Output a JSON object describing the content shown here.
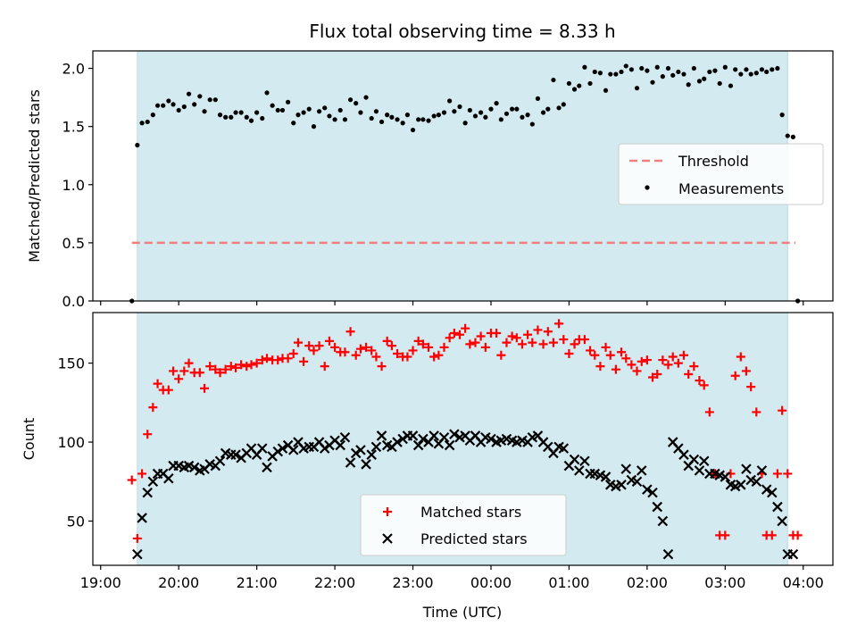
{
  "chart_data": {
    "type": "scatter",
    "title": "Flux total observing time = 8.33 h",
    "xlabel": "Time (UTC)",
    "x_ticks": [
      "19:00",
      "20:00",
      "21:00",
      "22:00",
      "23:00",
      "00:00",
      "01:00",
      "02:00",
      "03:00",
      "04:00"
    ],
    "observing_window": {
      "start_hours_after_19": 0.47,
      "end_hours_after_19": 8.8
    },
    "shade_color": "#d3eaf0",
    "panels": [
      {
        "name": "ratio",
        "ylabel": "Matched/Predicted stars",
        "ylim": [
          0,
          2.15
        ],
        "y_ticks": [
          "0.0",
          "0.5",
          "1.0",
          "1.5",
          "2.0"
        ],
        "y_tick_values": [
          0,
          0.5,
          1.0,
          1.5,
          2.0
        ],
        "legend": {
          "location": "center-right",
          "entries": [
            "Threshold",
            "Measurements"
          ]
        },
        "threshold": {
          "name": "Threshold",
          "value": 0.5,
          "x_range": [
            0.4,
            8.9
          ],
          "color": "#f08080"
        },
        "series": [
          {
            "name": "Measurements",
            "color": "#000000",
            "marker": "dot",
            "x": [
              0.4,
              0.47,
              0.53,
              0.6,
              0.67,
              0.73,
              0.8,
              0.87,
              0.93,
              1.0,
              1.07,
              1.13,
              1.2,
              1.27,
              1.33,
              1.4,
              1.47,
              1.53,
              1.6,
              1.67,
              1.73,
              1.8,
              1.87,
              1.93,
              2.0,
              2.07,
              2.13,
              2.2,
              2.27,
              2.33,
              2.4,
              2.47,
              2.53,
              2.6,
              2.67,
              2.73,
              2.8,
              2.87,
              2.93,
              3.0,
              3.07,
              3.13,
              3.2,
              3.27,
              3.33,
              3.4,
              3.47,
              3.53,
              3.6,
              3.67,
              3.73,
              3.8,
              3.87,
              3.93,
              4.0,
              4.07,
              4.13,
              4.2,
              4.27,
              4.33,
              4.4,
              4.47,
              4.53,
              4.6,
              4.67,
              4.73,
              4.8,
              4.87,
              4.93,
              5.0,
              5.07,
              5.13,
              5.2,
              5.27,
              5.33,
              5.4,
              5.47,
              5.53,
              5.6,
              5.67,
              5.73,
              5.8,
              5.87,
              5.93,
              6.0,
              6.07,
              6.13,
              6.2,
              6.27,
              6.33,
              6.4,
              6.47,
              6.53,
              6.6,
              6.67,
              6.73,
              6.8,
              6.87,
              6.93,
              7.0,
              7.07,
              7.13,
              7.2,
              7.27,
              7.33,
              7.4,
              7.47,
              7.53,
              7.6,
              7.67,
              7.73,
              7.8,
              7.87,
              7.93,
              8.0,
              8.07,
              8.13,
              8.2,
              8.27,
              8.33,
              8.4,
              8.47,
              8.53,
              8.6,
              8.67,
              8.73,
              8.8,
              8.87,
              8.93
            ],
            "y": [
              0.0,
              1.34,
              1.53,
              1.54,
              1.6,
              1.68,
              1.68,
              1.72,
              1.69,
              1.64,
              1.67,
              1.78,
              1.69,
              1.76,
              1.63,
              1.73,
              1.73,
              1.6,
              1.58,
              1.58,
              1.62,
              1.62,
              1.58,
              1.55,
              1.62,
              1.57,
              1.79,
              1.68,
              1.64,
              1.64,
              1.71,
              1.53,
              1.6,
              1.62,
              1.65,
              1.5,
              1.63,
              1.66,
              1.59,
              1.56,
              1.64,
              1.56,
              1.73,
              1.7,
              1.62,
              1.75,
              1.57,
              1.63,
              1.54,
              1.6,
              1.58,
              1.56,
              1.53,
              1.6,
              1.47,
              1.56,
              1.56,
              1.55,
              1.59,
              1.6,
              1.62,
              1.72,
              1.63,
              1.67,
              1.53,
              1.64,
              1.59,
              1.62,
              1.58,
              1.65,
              1.7,
              1.56,
              1.61,
              1.65,
              1.65,
              1.58,
              1.6,
              1.52,
              1.74,
              1.62,
              1.65,
              1.9,
              1.66,
              1.69,
              1.87,
              1.82,
              1.85,
              2.01,
              1.87,
              1.97,
              1.96,
              1.81,
              1.95,
              1.95,
              1.97,
              2.02,
              1.99,
              1.83,
              2.0,
              1.98,
              1.88,
              2.01,
              1.93,
              2.0,
              1.94,
              1.97,
              1.95,
              1.86,
              2.0,
              1.89,
              1.91,
              1.97,
              1.98,
              1.87,
              2.01,
              1.85,
              1.99,
              1.95,
              1.99,
              1.95,
              1.96,
              1.99,
              1.97,
              1.99,
              2.0,
              1.6,
              1.42,
              1.41,
              0.0
            ],
            "y_note": "Measured ratio values read from chart"
          }
        ]
      },
      {
        "name": "counts",
        "ylabel": "Count",
        "ylim": [
          22,
          182
        ],
        "y_ticks": [
          "50",
          "100",
          "150"
        ],
        "y_tick_values": [
          50,
          100,
          150
        ],
        "legend": {
          "location": "bottom-center",
          "entries": [
            "Matched stars",
            "Predicted stars"
          ]
        },
        "series": [
          {
            "name": "Matched stars",
            "color": "#ff0000",
            "marker": "plus",
            "x": [
              0.4,
              0.47,
              0.53,
              0.6,
              0.67,
              0.73,
              0.8,
              0.87,
              0.93,
              1.0,
              1.07,
              1.13,
              1.2,
              1.27,
              1.33,
              1.4,
              1.47,
              1.53,
              1.6,
              1.67,
              1.73,
              1.8,
              1.87,
              1.93,
              2.0,
              2.07,
              2.13,
              2.2,
              2.27,
              2.33,
              2.4,
              2.47,
              2.53,
              2.6,
              2.67,
              2.73,
              2.8,
              2.87,
              2.93,
              3.0,
              3.07,
              3.13,
              3.2,
              3.27,
              3.33,
              3.4,
              3.47,
              3.53,
              3.6,
              3.67,
              3.73,
              3.8,
              3.87,
              3.93,
              4.0,
              4.07,
              4.13,
              4.2,
              4.27,
              4.33,
              4.4,
              4.47,
              4.53,
              4.6,
              4.67,
              4.73,
              4.8,
              4.87,
              4.93,
              5.0,
              5.07,
              5.13,
              5.2,
              5.27,
              5.33,
              5.4,
              5.47,
              5.53,
              5.6,
              5.67,
              5.73,
              5.8,
              5.87,
              5.93,
              6.0,
              6.07,
              6.13,
              6.2,
              6.27,
              6.33,
              6.4,
              6.47,
              6.53,
              6.6,
              6.67,
              6.73,
              6.8,
              6.87,
              6.93,
              7.0,
              7.07,
              7.13,
              7.2,
              7.27,
              7.33,
              7.4,
              7.47,
              7.53,
              7.6,
              7.67,
              7.73,
              7.8,
              7.87,
              7.93,
              8.0,
              8.07,
              8.13,
              8.2,
              8.27,
              8.33,
              8.4,
              8.47,
              8.53,
              8.6,
              8.67,
              8.73,
              8.8,
              8.87,
              8.93
            ],
            "y": [
              76,
              39,
              80,
              105,
              122,
              137,
              133,
              133,
              145,
              140,
              145,
              150,
              144,
              144,
              134,
              148,
              146,
              144,
              146,
              148,
              147,
              149,
              148,
              149,
              150,
              152,
              153,
              152,
              152,
              153,
              153,
              156,
              163,
              151,
              161,
              158,
              161,
              148,
              164,
              160,
              157,
              157,
              170,
              155,
              159,
              160,
              158,
              154,
              148,
              164,
              161,
              156,
              154,
              154,
              158,
              164,
              162,
              160,
              154,
              155,
              160,
              166,
              169,
              168,
              172,
              162,
              163,
              167,
              160,
              169,
              169,
              155,
              163,
              167,
              166,
              162,
              168,
              163,
              171,
              162,
              170,
              163,
              175,
              165,
              156,
              162,
              165,
              165,
              158,
              155,
              148,
              160,
              155,
              146,
              157,
              153,
              149,
              145,
              151,
              152,
              141,
              143,
              152,
              149,
              154,
              150,
              155,
              143,
              148,
              139,
              136,
              119,
              80,
              41,
              41,
              80,
              142,
              154,
              145,
              135,
              119,
              80,
              41,
              41,
              80,
              120,
              80,
              41,
              41
            ],
            "y_note": "Matched star counts read from chart"
          },
          {
            "name": "Predicted stars",
            "color": "#000000",
            "marker": "x",
            "x": [
              0.47,
              0.53,
              0.6,
              0.67,
              0.73,
              0.8,
              0.87,
              0.93,
              1.0,
              1.07,
              1.13,
              1.2,
              1.27,
              1.33,
              1.4,
              1.47,
              1.53,
              1.6,
              1.67,
              1.73,
              1.8,
              1.87,
              1.93,
              2.0,
              2.07,
              2.13,
              2.2,
              2.27,
              2.33,
              2.4,
              2.47,
              2.53,
              2.6,
              2.67,
              2.73,
              2.8,
              2.87,
              2.93,
              3.0,
              3.07,
              3.13,
              3.2,
              3.27,
              3.33,
              3.4,
              3.47,
              3.53,
              3.6,
              3.67,
              3.73,
              3.8,
              3.87,
              3.93,
              4.0,
              4.07,
              4.13,
              4.2,
              4.27,
              4.33,
              4.4,
              4.47,
              4.53,
              4.6,
              4.67,
              4.73,
              4.8,
              4.87,
              4.93,
              5.0,
              5.07,
              5.13,
              5.2,
              5.27,
              5.33,
              5.4,
              5.47,
              5.53,
              5.6,
              5.67,
              5.73,
              5.8,
              5.87,
              5.93,
              6.0,
              6.07,
              6.13,
              6.2,
              6.27,
              6.33,
              6.4,
              6.47,
              6.53,
              6.6,
              6.67,
              6.73,
              6.8,
              6.87,
              6.93,
              7.0,
              7.07,
              7.13,
              7.2,
              7.27,
              7.33,
              7.4,
              7.47,
              7.53,
              7.6,
              7.67,
              7.73,
              7.8,
              7.87,
              7.93,
              8.0,
              8.07,
              8.13,
              8.2,
              8.27,
              8.33,
              8.4,
              8.47,
              8.53,
              8.6,
              8.67,
              8.73,
              8.8,
              8.87
            ],
            "y": [
              29,
              52,
              68,
              75,
              80,
              80,
              77,
              85,
              85,
              84,
              85,
              84,
              82,
              83,
              86,
              85,
              88,
              93,
              92,
              92,
              90,
              93,
              96,
              92,
              96,
              84,
              91,
              94,
              96,
              98,
              95,
              100,
              96,
              97,
              97,
              100,
              96,
              98,
              101,
              98,
              103,
              87,
              93,
              95,
              86,
              92,
              97,
              104,
              98,
              97,
              100,
              102,
              104,
              104,
              98,
              102,
              100,
              104,
              99,
              103,
              98,
              105,
              103,
              104,
              101,
              104,
              100,
              103,
              102,
              100,
              101,
              102,
              101,
              100,
              101,
              100,
              103,
              104,
              100,
              97,
              93,
              97,
              96,
              85,
              89,
              82,
              88,
              80,
              80,
              79,
              78,
              73,
              72,
              73,
              83,
              76,
              75,
              82,
              70,
              68,
              59,
              50,
              29,
              100,
              96,
              92,
              85,
              89,
              82,
              88,
              80,
              80,
              79,
              78,
              73,
              72,
              73,
              83,
              76,
              75,
              82,
              70,
              68,
              59,
              50,
              29,
              29
            ],
            "y_note": "Predicted star counts read from chart"
          }
        ]
      }
    ]
  }
}
